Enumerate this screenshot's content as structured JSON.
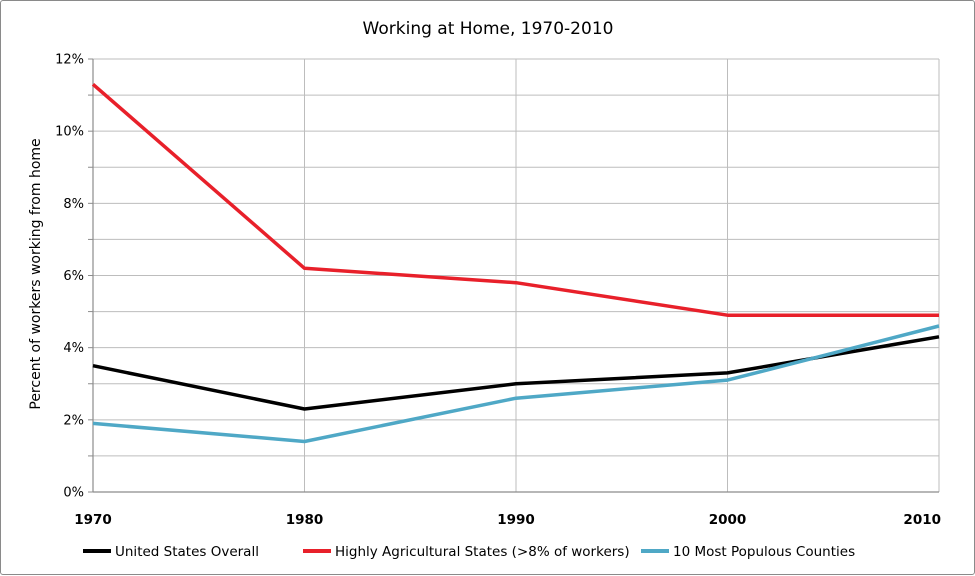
{
  "chart_data": {
    "type": "line",
    "title": "Working at Home, 1970-2010",
    "xlabel": "",
    "ylabel": "Percent of workers working from home",
    "x": [
      1970,
      1980,
      1990,
      2000,
      2010
    ],
    "x_tick_labels": [
      "1970",
      "1980",
      "1990",
      "2000",
      "2010"
    ],
    "ylim": [
      0,
      12
    ],
    "y_ticks": [
      0,
      2,
      4,
      6,
      8,
      10,
      12
    ],
    "y_tick_labels": [
      "0%",
      "2%",
      "4%",
      "6%",
      "8%",
      "10%",
      "12%"
    ],
    "y_minor_ticks": [
      1,
      3,
      5,
      7,
      9,
      11
    ],
    "grid": true,
    "legend_position": "bottom",
    "series": [
      {
        "name": "United States Overall",
        "color": "#000000",
        "values": [
          3.5,
          2.3,
          3.0,
          3.3,
          4.3
        ]
      },
      {
        "name": "Highly Agricultural States (>8% of workers)",
        "color": "#e8202a",
        "values": [
          11.3,
          6.2,
          5.8,
          4.9,
          4.9
        ]
      },
      {
        "name": "10 Most Populous Counties",
        "color": "#4fa8c6",
        "values": [
          1.9,
          1.4,
          2.6,
          3.1,
          4.6
        ]
      }
    ]
  }
}
